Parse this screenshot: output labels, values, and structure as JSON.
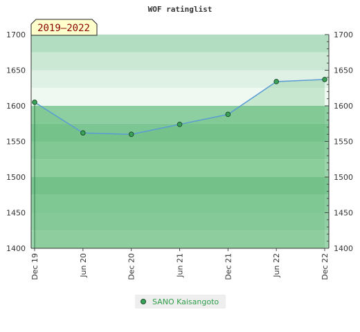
{
  "chart_data": {
    "type": "line",
    "title": "WOF ratinglist",
    "period_label": "2019–2022",
    "x": [
      "Dec 19",
      "Jun 20",
      "Dec 20",
      "Jun 21",
      "Dec 21",
      "Jun 22",
      "Dec 22"
    ],
    "series": [
      {
        "name": "SANO Kaisangoto",
        "values": [
          1605,
          1562,
          1560,
          1574,
          1588,
          1634,
          1637
        ]
      }
    ],
    "ylim": [
      1400,
      1700
    ],
    "yticks": [
      1400,
      1450,
      1500,
      1550,
      1600,
      1650,
      1700
    ],
    "y_axes": "left and right",
    "legend_position": "bottom-center",
    "grid": "horizontal bands",
    "colors": {
      "line": "#5a9bd4",
      "marker_fill": "#3aa35a",
      "marker_stroke": "#1d4d2a",
      "area_fill": "#66bb77",
      "period_bg": "#ffffcc",
      "period_text": "#8b0000",
      "legend_text": "#2e9e4a"
    }
  }
}
